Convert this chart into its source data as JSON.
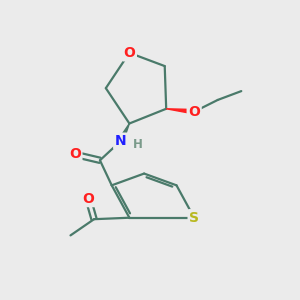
{
  "background_color": "#ebebeb",
  "bond_color": "#4a7a6a",
  "bond_lw": 1.6,
  "atom_colors": {
    "O": "#ff2020",
    "N": "#2020ff",
    "S": "#b8b820",
    "H": "#888888",
    "C": "#4a7a6a"
  },
  "figsize": [
    3.0,
    3.0
  ],
  "dpi": 100
}
